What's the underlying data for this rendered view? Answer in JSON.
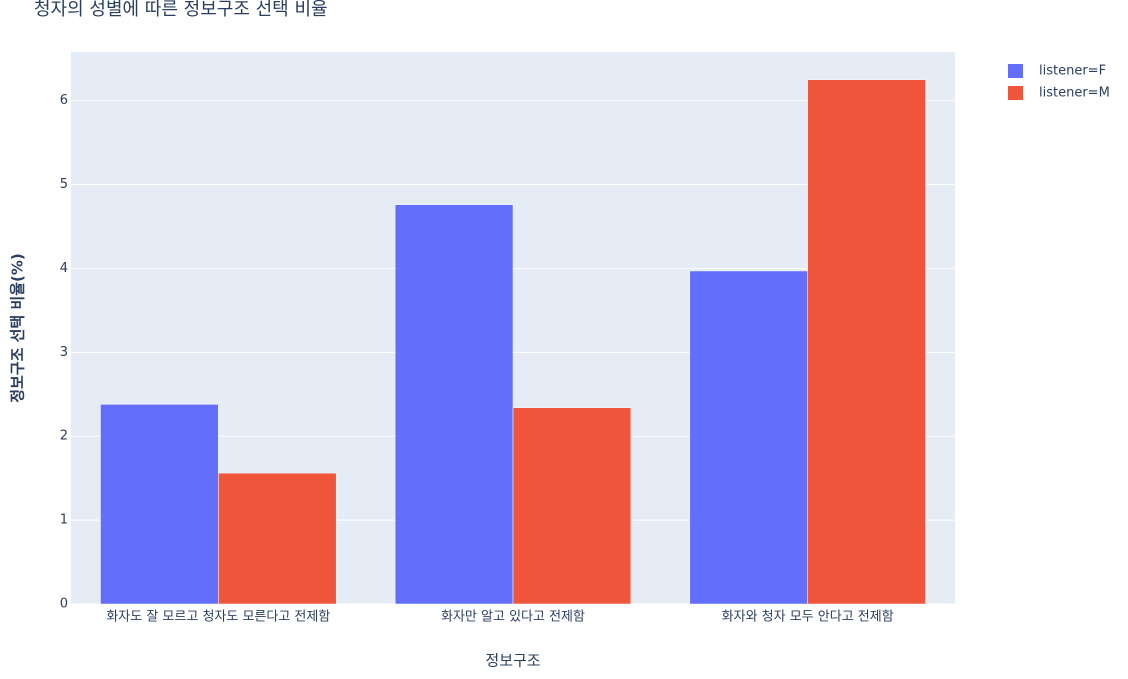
{
  "chart_data": {
    "type": "bar",
    "title": "청자의 성별에 따른 정보구조 선택 비율",
    "x_label": "정보구조",
    "y_label": "정보구조 선택 비율(%)",
    "categories": [
      "화자도 잘 모르고 청자도 모른다고 전제함",
      "화자만 알고 있다고 전제함",
      "화자와 청자 모두 안다고 전제함"
    ],
    "series": [
      {
        "name": "listener=F",
        "color": "#636efa",
        "values": [
          2.38,
          4.76,
          3.97
        ]
      },
      {
        "name": "listener=M",
        "color": "#ef553b",
        "values": [
          1.56,
          2.34,
          6.25
        ]
      }
    ],
    "ylim": [
      0,
      6.58
    ],
    "yticks": [
      0,
      1,
      2,
      3,
      4,
      5,
      6
    ],
    "grid": true,
    "legend": "right"
  }
}
